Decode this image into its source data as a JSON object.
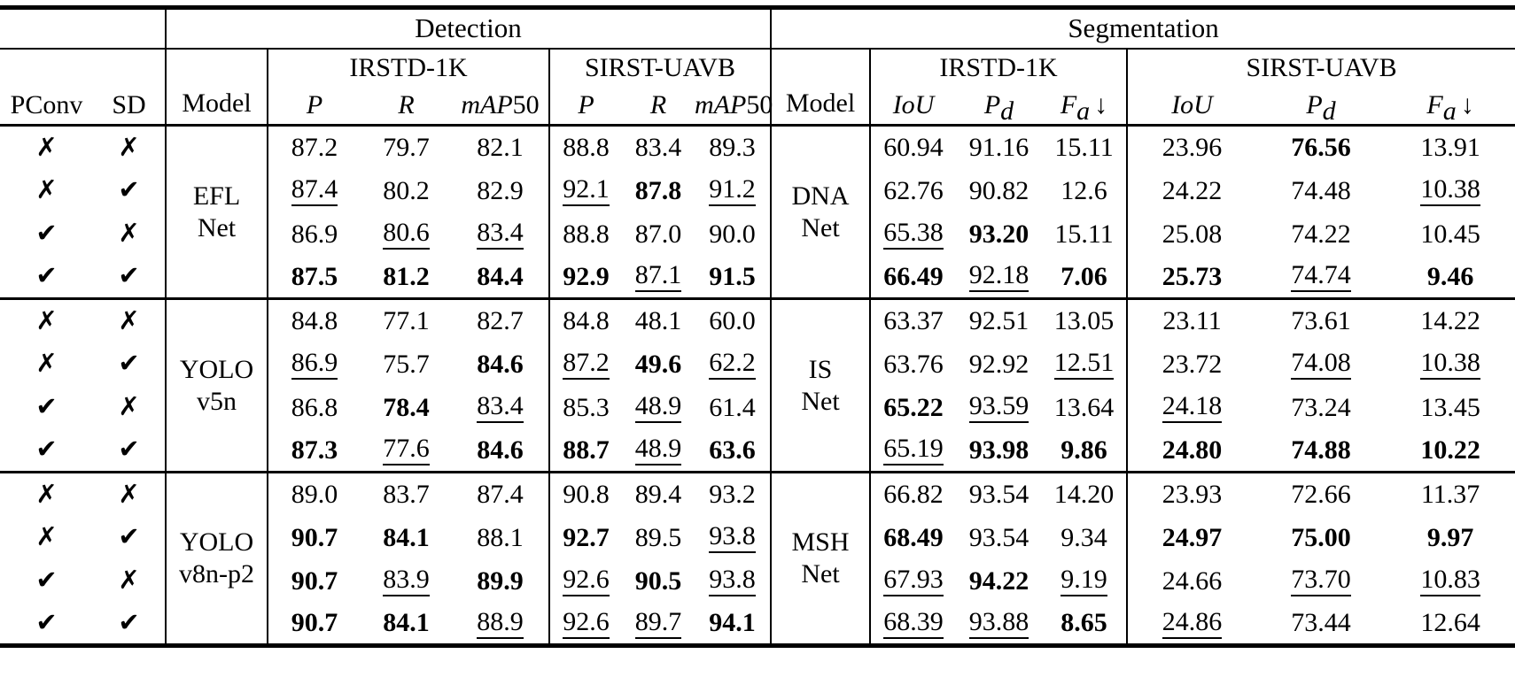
{
  "table": {
    "top_headers": {
      "detection": "Detection",
      "segmentation": "Segmentation"
    },
    "col_headers": {
      "pconv": "PConv",
      "sd": "SD",
      "model": "Model",
      "det_datasets": [
        "IRSTD-1K",
        "SIRST-UAVB"
      ],
      "seg_datasets": [
        "IRSTD-1K",
        "SIRST-UAVB"
      ],
      "det_metrics": [
        {
          "it": "P"
        },
        {
          "it": "R"
        },
        {
          "it": "mAP",
          "norm": "50"
        }
      ],
      "seg_metrics": [
        {
          "it": "IoU"
        },
        {
          "it": "P",
          "sub": "d"
        },
        {
          "it": "F",
          "sub": "a",
          "arrow": "↓"
        }
      ]
    },
    "marks": {
      "yes": "✔",
      "no": "✗"
    },
    "groups": [
      {
        "det_model": {
          "lines": [
            "EFL",
            "Net"
          ]
        },
        "seg_model": {
          "lines": [
            "DNA",
            "Net"
          ]
        },
        "rows": [
          {
            "pconv": "no",
            "sd": "no",
            "values": [
              {
                "v": "87.2",
                "s": ""
              },
              {
                "v": "79.7",
                "s": ""
              },
              {
                "v": "82.1",
                "s": ""
              },
              {
                "v": "88.8",
                "s": ""
              },
              {
                "v": "83.4",
                "s": ""
              },
              {
                "v": "89.3",
                "s": ""
              },
              {
                "v": "60.94",
                "s": ""
              },
              {
                "v": "91.16",
                "s": ""
              },
              {
                "v": "15.11",
                "s": ""
              },
              {
                "v": "23.96",
                "s": ""
              },
              {
                "v": "76.56",
                "s": "b"
              },
              {
                "v": "13.91",
                "s": ""
              }
            ]
          },
          {
            "pconv": "no",
            "sd": "yes",
            "values": [
              {
                "v": "87.4",
                "s": "u"
              },
              {
                "v": "80.2",
                "s": ""
              },
              {
                "v": "82.9",
                "s": ""
              },
              {
                "v": "92.1",
                "s": "u"
              },
              {
                "v": "87.8",
                "s": "b"
              },
              {
                "v": "91.2",
                "s": "u"
              },
              {
                "v": "62.76",
                "s": ""
              },
              {
                "v": "90.82",
                "s": ""
              },
              {
                "v": "12.6",
                "s": ""
              },
              {
                "v": "24.22",
                "s": ""
              },
              {
                "v": "74.48",
                "s": ""
              },
              {
                "v": "10.38",
                "s": "u"
              }
            ]
          },
          {
            "pconv": "yes",
            "sd": "no",
            "values": [
              {
                "v": "86.9",
                "s": ""
              },
              {
                "v": "80.6",
                "s": "u"
              },
              {
                "v": "83.4",
                "s": "u"
              },
              {
                "v": "88.8",
                "s": ""
              },
              {
                "v": "87.0",
                "s": ""
              },
              {
                "v": "90.0",
                "s": ""
              },
              {
                "v": "65.38",
                "s": "u"
              },
              {
                "v": "93.20",
                "s": "b"
              },
              {
                "v": "15.11",
                "s": ""
              },
              {
                "v": "25.08",
                "s": ""
              },
              {
                "v": "74.22",
                "s": ""
              },
              {
                "v": "10.45",
                "s": ""
              }
            ]
          },
          {
            "pconv": "yes",
            "sd": "yes",
            "values": [
              {
                "v": "87.5",
                "s": "b"
              },
              {
                "v": "81.2",
                "s": "b"
              },
              {
                "v": "84.4",
                "s": "b"
              },
              {
                "v": "92.9",
                "s": "b"
              },
              {
                "v": "87.1",
                "s": "u"
              },
              {
                "v": "91.5",
                "s": "b"
              },
              {
                "v": "66.49",
                "s": "b"
              },
              {
                "v": "92.18",
                "s": "u"
              },
              {
                "v": "7.06",
                "s": "b"
              },
              {
                "v": "25.73",
                "s": "b"
              },
              {
                "v": "74.74",
                "s": "u"
              },
              {
                "v": "9.46",
                "s": "b"
              }
            ]
          }
        ]
      },
      {
        "det_model": {
          "lines": [
            "YOLO",
            "v5n"
          ]
        },
        "seg_model": {
          "lines": [
            "IS",
            "Net"
          ]
        },
        "rows": [
          {
            "pconv": "no",
            "sd": "no",
            "values": [
              {
                "v": "84.8",
                "s": ""
              },
              {
                "v": "77.1",
                "s": ""
              },
              {
                "v": "82.7",
                "s": ""
              },
              {
                "v": "84.8",
                "s": ""
              },
              {
                "v": "48.1",
                "s": ""
              },
              {
                "v": "60.0",
                "s": ""
              },
              {
                "v": "63.37",
                "s": ""
              },
              {
                "v": "92.51",
                "s": ""
              },
              {
                "v": "13.05",
                "s": ""
              },
              {
                "v": "23.11",
                "s": ""
              },
              {
                "v": "73.61",
                "s": ""
              },
              {
                "v": "14.22",
                "s": ""
              }
            ]
          },
          {
            "pconv": "no",
            "sd": "yes",
            "values": [
              {
                "v": "86.9",
                "s": "u"
              },
              {
                "v": "75.7",
                "s": ""
              },
              {
                "v": "84.6",
                "s": "b"
              },
              {
                "v": "87.2",
                "s": "u"
              },
              {
                "v": "49.6",
                "s": "b"
              },
              {
                "v": "62.2",
                "s": "u"
              },
              {
                "v": "63.76",
                "s": ""
              },
              {
                "v": "92.92",
                "s": ""
              },
              {
                "v": "12.51",
                "s": "u"
              },
              {
                "v": "23.72",
                "s": ""
              },
              {
                "v": "74.08",
                "s": "u"
              },
              {
                "v": "10.38",
                "s": "u"
              }
            ]
          },
          {
            "pconv": "yes",
            "sd": "no",
            "values": [
              {
                "v": "86.8",
                "s": ""
              },
              {
                "v": "78.4",
                "s": "b"
              },
              {
                "v": "83.4",
                "s": "u"
              },
              {
                "v": "85.3",
                "s": ""
              },
              {
                "v": "48.9",
                "s": "u"
              },
              {
                "v": "61.4",
                "s": ""
              },
              {
                "v": "65.22",
                "s": "b"
              },
              {
                "v": "93.59",
                "s": "u"
              },
              {
                "v": "13.64",
                "s": ""
              },
              {
                "v": "24.18",
                "s": "u"
              },
              {
                "v": "73.24",
                "s": ""
              },
              {
                "v": "13.45",
                "s": ""
              }
            ]
          },
          {
            "pconv": "yes",
            "sd": "yes",
            "values": [
              {
                "v": "87.3",
                "s": "b"
              },
              {
                "v": "77.6",
                "s": "u"
              },
              {
                "v": "84.6",
                "s": "b"
              },
              {
                "v": "88.7",
                "s": "b"
              },
              {
                "v": "48.9",
                "s": "u"
              },
              {
                "v": "63.6",
                "s": "b"
              },
              {
                "v": "65.19",
                "s": "u"
              },
              {
                "v": "93.98",
                "s": "b"
              },
              {
                "v": "9.86",
                "s": "b"
              },
              {
                "v": "24.80",
                "s": "b"
              },
              {
                "v": "74.88",
                "s": "b"
              },
              {
                "v": "10.22",
                "s": "b"
              }
            ]
          }
        ]
      },
      {
        "det_model": {
          "lines": [
            "YOLO",
            "v8n-p2"
          ]
        },
        "seg_model": {
          "lines": [
            "MSH",
            "Net"
          ]
        },
        "rows": [
          {
            "pconv": "no",
            "sd": "no",
            "values": [
              {
                "v": "89.0",
                "s": ""
              },
              {
                "v": "83.7",
                "s": ""
              },
              {
                "v": "87.4",
                "s": ""
              },
              {
                "v": "90.8",
                "s": ""
              },
              {
                "v": "89.4",
                "s": ""
              },
              {
                "v": "93.2",
                "s": ""
              },
              {
                "v": "66.82",
                "s": ""
              },
              {
                "v": "93.54",
                "s": ""
              },
              {
                "v": "14.20",
                "s": ""
              },
              {
                "v": "23.93",
                "s": ""
              },
              {
                "v": "72.66",
                "s": ""
              },
              {
                "v": "11.37",
                "s": ""
              }
            ]
          },
          {
            "pconv": "no",
            "sd": "yes",
            "values": [
              {
                "v": "90.7",
                "s": "b"
              },
              {
                "v": "84.1",
                "s": "b"
              },
              {
                "v": "88.1",
                "s": ""
              },
              {
                "v": "92.7",
                "s": "b"
              },
              {
                "v": "89.5",
                "s": ""
              },
              {
                "v": "93.8",
                "s": "u"
              },
              {
                "v": "68.49",
                "s": "b"
              },
              {
                "v": "93.54",
                "s": ""
              },
              {
                "v": "9.34",
                "s": ""
              },
              {
                "v": "24.97",
                "s": "b"
              },
              {
                "v": "75.00",
                "s": "b"
              },
              {
                "v": "9.97",
                "s": "b"
              }
            ]
          },
          {
            "pconv": "yes",
            "sd": "no",
            "values": [
              {
                "v": "90.7",
                "s": "b"
              },
              {
                "v": "83.9",
                "s": "u"
              },
              {
                "v": "89.9",
                "s": "b"
              },
              {
                "v": "92.6",
                "s": "u"
              },
              {
                "v": "90.5",
                "s": "b"
              },
              {
                "v": "93.8",
                "s": "u"
              },
              {
                "v": "67.93",
                "s": "u"
              },
              {
                "v": "94.22",
                "s": "b"
              },
              {
                "v": "9.19",
                "s": "u"
              },
              {
                "v": "24.66",
                "s": ""
              },
              {
                "v": "73.70",
                "s": "u"
              },
              {
                "v": "10.83",
                "s": "u"
              }
            ]
          },
          {
            "pconv": "yes",
            "sd": "yes",
            "values": [
              {
                "v": "90.7",
                "s": "b"
              },
              {
                "v": "84.1",
                "s": "b"
              },
              {
                "v": "88.9",
                "s": "u"
              },
              {
                "v": "92.6",
                "s": "u"
              },
              {
                "v": "89.7",
                "s": "u"
              },
              {
                "v": "94.1",
                "s": "b"
              },
              {
                "v": "68.39",
                "s": "u"
              },
              {
                "v": "93.88",
                "s": "u"
              },
              {
                "v": "8.65",
                "s": "b"
              },
              {
                "v": "24.86",
                "s": "u"
              },
              {
                "v": "73.44",
                "s": ""
              },
              {
                "v": "12.64",
                "s": ""
              }
            ]
          }
        ]
      }
    ]
  }
}
